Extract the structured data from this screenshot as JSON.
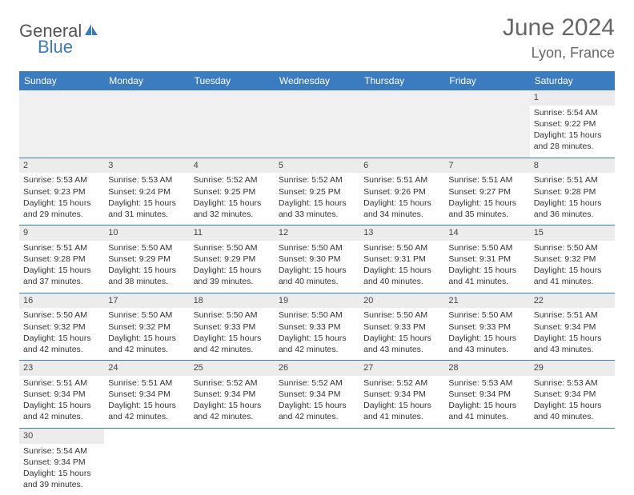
{
  "brand": {
    "part1": "General",
    "part2": "Blue"
  },
  "title": "June 2024",
  "location": "Lyon, France",
  "colors": {
    "header_bg": "#3b7bbf",
    "header_text": "#ffffff",
    "daynum_bg": "#ececec",
    "cell_border": "#3b7bbf",
    "title_color": "#666666",
    "text_color": "#333333"
  },
  "typography": {
    "title_fontsize": 30,
    "location_fontsize": 18,
    "header_fontsize": 12,
    "cell_fontsize": 10.5
  },
  "weekdays": [
    "Sunday",
    "Monday",
    "Tuesday",
    "Wednesday",
    "Thursday",
    "Friday",
    "Saturday"
  ],
  "leading_blanks": 6,
  "days": [
    {
      "n": 1,
      "sunrise": "5:54 AM",
      "sunset": "9:22 PM",
      "daylight": "15 hours and 28 minutes."
    },
    {
      "n": 2,
      "sunrise": "5:53 AM",
      "sunset": "9:23 PM",
      "daylight": "15 hours and 29 minutes."
    },
    {
      "n": 3,
      "sunrise": "5:53 AM",
      "sunset": "9:24 PM",
      "daylight": "15 hours and 31 minutes."
    },
    {
      "n": 4,
      "sunrise": "5:52 AM",
      "sunset": "9:25 PM",
      "daylight": "15 hours and 32 minutes."
    },
    {
      "n": 5,
      "sunrise": "5:52 AM",
      "sunset": "9:25 PM",
      "daylight": "15 hours and 33 minutes."
    },
    {
      "n": 6,
      "sunrise": "5:51 AM",
      "sunset": "9:26 PM",
      "daylight": "15 hours and 34 minutes."
    },
    {
      "n": 7,
      "sunrise": "5:51 AM",
      "sunset": "9:27 PM",
      "daylight": "15 hours and 35 minutes."
    },
    {
      "n": 8,
      "sunrise": "5:51 AM",
      "sunset": "9:28 PM",
      "daylight": "15 hours and 36 minutes."
    },
    {
      "n": 9,
      "sunrise": "5:51 AM",
      "sunset": "9:28 PM",
      "daylight": "15 hours and 37 minutes."
    },
    {
      "n": 10,
      "sunrise": "5:50 AM",
      "sunset": "9:29 PM",
      "daylight": "15 hours and 38 minutes."
    },
    {
      "n": 11,
      "sunrise": "5:50 AM",
      "sunset": "9:29 PM",
      "daylight": "15 hours and 39 minutes."
    },
    {
      "n": 12,
      "sunrise": "5:50 AM",
      "sunset": "9:30 PM",
      "daylight": "15 hours and 40 minutes."
    },
    {
      "n": 13,
      "sunrise": "5:50 AM",
      "sunset": "9:31 PM",
      "daylight": "15 hours and 40 minutes."
    },
    {
      "n": 14,
      "sunrise": "5:50 AM",
      "sunset": "9:31 PM",
      "daylight": "15 hours and 41 minutes."
    },
    {
      "n": 15,
      "sunrise": "5:50 AM",
      "sunset": "9:32 PM",
      "daylight": "15 hours and 41 minutes."
    },
    {
      "n": 16,
      "sunrise": "5:50 AM",
      "sunset": "9:32 PM",
      "daylight": "15 hours and 42 minutes."
    },
    {
      "n": 17,
      "sunrise": "5:50 AM",
      "sunset": "9:32 PM",
      "daylight": "15 hours and 42 minutes."
    },
    {
      "n": 18,
      "sunrise": "5:50 AM",
      "sunset": "9:33 PM",
      "daylight": "15 hours and 42 minutes."
    },
    {
      "n": 19,
      "sunrise": "5:50 AM",
      "sunset": "9:33 PM",
      "daylight": "15 hours and 42 minutes."
    },
    {
      "n": 20,
      "sunrise": "5:50 AM",
      "sunset": "9:33 PM",
      "daylight": "15 hours and 43 minutes."
    },
    {
      "n": 21,
      "sunrise": "5:50 AM",
      "sunset": "9:33 PM",
      "daylight": "15 hours and 43 minutes."
    },
    {
      "n": 22,
      "sunrise": "5:51 AM",
      "sunset": "9:34 PM",
      "daylight": "15 hours and 43 minutes."
    },
    {
      "n": 23,
      "sunrise": "5:51 AM",
      "sunset": "9:34 PM",
      "daylight": "15 hours and 42 minutes."
    },
    {
      "n": 24,
      "sunrise": "5:51 AM",
      "sunset": "9:34 PM",
      "daylight": "15 hours and 42 minutes."
    },
    {
      "n": 25,
      "sunrise": "5:52 AM",
      "sunset": "9:34 PM",
      "daylight": "15 hours and 42 minutes."
    },
    {
      "n": 26,
      "sunrise": "5:52 AM",
      "sunset": "9:34 PM",
      "daylight": "15 hours and 42 minutes."
    },
    {
      "n": 27,
      "sunrise": "5:52 AM",
      "sunset": "9:34 PM",
      "daylight": "15 hours and 41 minutes."
    },
    {
      "n": 28,
      "sunrise": "5:53 AM",
      "sunset": "9:34 PM",
      "daylight": "15 hours and 41 minutes."
    },
    {
      "n": 29,
      "sunrise": "5:53 AM",
      "sunset": "9:34 PM",
      "daylight": "15 hours and 40 minutes."
    },
    {
      "n": 30,
      "sunrise": "5:54 AM",
      "sunset": "9:34 PM",
      "daylight": "15 hours and 39 minutes."
    }
  ],
  "labels": {
    "sunrise": "Sunrise:",
    "sunset": "Sunset:",
    "daylight": "Daylight:"
  }
}
